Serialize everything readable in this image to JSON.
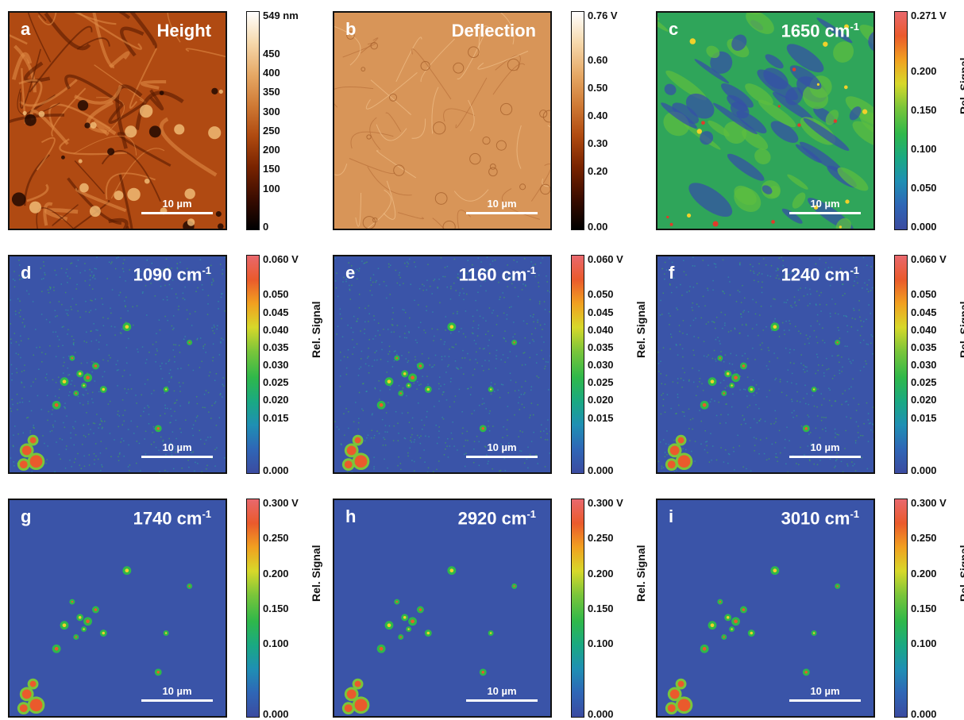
{
  "colors": {
    "jet": [
      "#3b4ba0",
      "#2f66b6",
      "#1f8fb4",
      "#1aa982",
      "#2fb84a",
      "#7ac53a",
      "#d7d82a",
      "#f1a020",
      "#ea5a2c",
      "#e9686d"
    ],
    "copper": [
      "#000000",
      "#3a0c00",
      "#7a2400",
      "#b04a10",
      "#cf7a35",
      "#e6a865",
      "#f6d9ad",
      "#ffffff"
    ],
    "height_bg": "#b04a12",
    "deflection_bg": "#d89558",
    "map_bg": "#3a54a8",
    "panel_text": "#ffffff"
  },
  "panels": [
    {
      "letter": "a",
      "title": "Height",
      "title_sup": "",
      "scale": "10 µm",
      "colormap": "copper",
      "ticks": [
        "549 nm",
        "450",
        "400",
        "350",
        "300",
        "250",
        "200",
        "150",
        "100",
        "0"
      ],
      "tick_values": [
        549,
        450,
        400,
        350,
        300,
        250,
        200,
        150,
        100,
        0
      ],
      "cmax": 549,
      "ylabel": ""
    },
    {
      "letter": "b",
      "title": "Deflection",
      "title_sup": "",
      "scale": "10 µm",
      "colormap": "copper",
      "ticks": [
        "0.76 V",
        "0.60",
        "0.50",
        "0.40",
        "0.30",
        "0.20",
        "0.00"
      ],
      "tick_values": [
        0.76,
        0.6,
        0.5,
        0.4,
        0.3,
        0.2,
        0.0
      ],
      "cmax": 0.76,
      "ylabel": ""
    },
    {
      "letter": "c",
      "title": "1650 cm",
      "title_sup": "-1",
      "scale": "10 µm",
      "colormap": "jet",
      "ticks": [
        "0.271 V",
        "0.200",
        "0.150",
        "0.100",
        "0.050",
        "0.000"
      ],
      "tick_values": [
        0.271,
        0.2,
        0.15,
        0.1,
        0.05,
        0.0
      ],
      "cmax": 0.271,
      "ylabel": "Rel. Signal"
    },
    {
      "letter": "d",
      "title": "1090 cm",
      "title_sup": "-1",
      "scale": "10 µm",
      "colormap": "jet",
      "ticks": [
        "0.060 V",
        "0.050",
        "0.045",
        "0.040",
        "0.035",
        "0.030",
        "0.025",
        "0.020",
        "0.015",
        "0.000"
      ],
      "tick_values": [
        0.06,
        0.05,
        0.045,
        0.04,
        0.035,
        0.03,
        0.025,
        0.02,
        0.015,
        0.0
      ],
      "cmax": 0.06,
      "ylabel": "Rel. Signal"
    },
    {
      "letter": "e",
      "title": "1160 cm",
      "title_sup": "-1",
      "scale": "10 µm",
      "colormap": "jet",
      "ticks": [
        "0.060 V",
        "0.050",
        "0.045",
        "0.040",
        "0.035",
        "0.030",
        "0.025",
        "0.020",
        "0.015",
        "0.000"
      ],
      "tick_values": [
        0.06,
        0.05,
        0.045,
        0.04,
        0.035,
        0.03,
        0.025,
        0.02,
        0.015,
        0.0
      ],
      "cmax": 0.06,
      "ylabel": "Rel. Signal"
    },
    {
      "letter": "f",
      "title": "1240 cm",
      "title_sup": "-1",
      "scale": "10 µm",
      "colormap": "jet",
      "ticks": [
        "0.060 V",
        "0.050",
        "0.045",
        "0.040",
        "0.035",
        "0.030",
        "0.025",
        "0.020",
        "0.015",
        "0.000"
      ],
      "tick_values": [
        0.06,
        0.05,
        0.045,
        0.04,
        0.035,
        0.03,
        0.025,
        0.02,
        0.015,
        0.0
      ],
      "cmax": 0.06,
      "ylabel": "Rel. Signal"
    },
    {
      "letter": "g",
      "title": "1740 cm",
      "title_sup": "-1",
      "scale": "10 µm",
      "colormap": "jet",
      "ticks": [
        "0.300 V",
        "0.250",
        "0.200",
        "0.150",
        "0.100",
        "0.000"
      ],
      "tick_values": [
        0.3,
        0.25,
        0.2,
        0.15,
        0.1,
        0.0
      ],
      "cmax": 0.3,
      "ylabel": "Rel. Signal"
    },
    {
      "letter": "h",
      "title": "2920 cm",
      "title_sup": "-1",
      "scale": "10 µm",
      "colormap": "jet",
      "ticks": [
        "0.300 V",
        "0.250",
        "0.200",
        "0.150",
        "0.100",
        "0.000"
      ],
      "tick_values": [
        0.3,
        0.25,
        0.2,
        0.15,
        0.1,
        0.0
      ],
      "cmax": 0.3,
      "ylabel": "Rel. Signal"
    },
    {
      "letter": "i",
      "title": "3010 cm",
      "title_sup": "-1",
      "scale": "10 µm",
      "colormap": "jet",
      "ticks": [
        "0.300 V",
        "0.250",
        "0.200",
        "0.150",
        "0.100",
        "0.000"
      ],
      "tick_values": [
        0.3,
        0.25,
        0.2,
        0.15,
        0.1,
        0.0
      ],
      "cmax": 0.3,
      "ylabel": "Rel. Signal"
    }
  ]
}
